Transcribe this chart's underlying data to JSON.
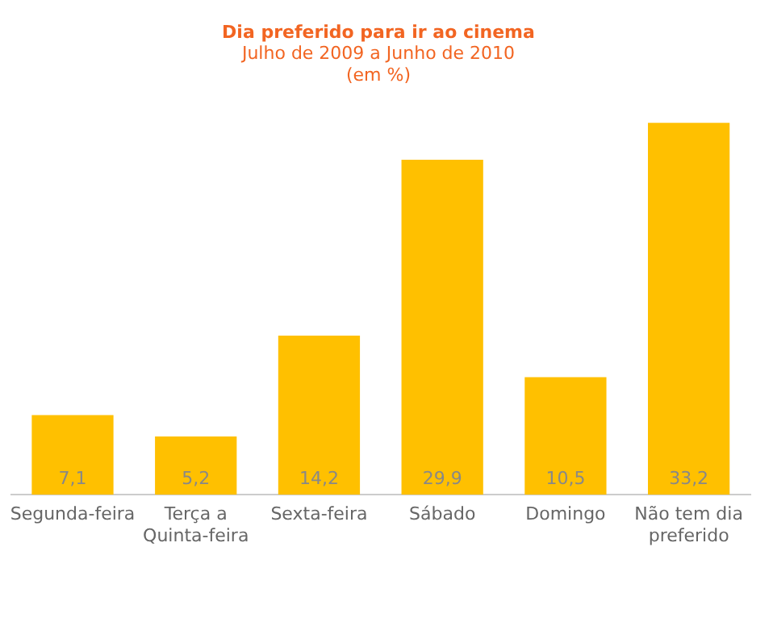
{
  "chart_data": {
    "type": "bar",
    "title": "Dia preferido para ir ao cinema",
    "subtitle": "Julho de 2009 a Junho de 2010\n(em %)",
    "categories": [
      "Segunda-feira",
      "Terça a Quinta-feira",
      "Sexta-feira",
      "Sábado",
      "Domingo",
      "Não tem dia preferido"
    ],
    "values": [
      7.1,
      5.2,
      14.2,
      29.9,
      10.5,
      33.2
    ],
    "value_labels": [
      "7,1",
      "5,2",
      "14,2",
      "29,9",
      "10,5",
      "33,2"
    ],
    "color": "#ffc000",
    "grid": false,
    "legend": false
  }
}
